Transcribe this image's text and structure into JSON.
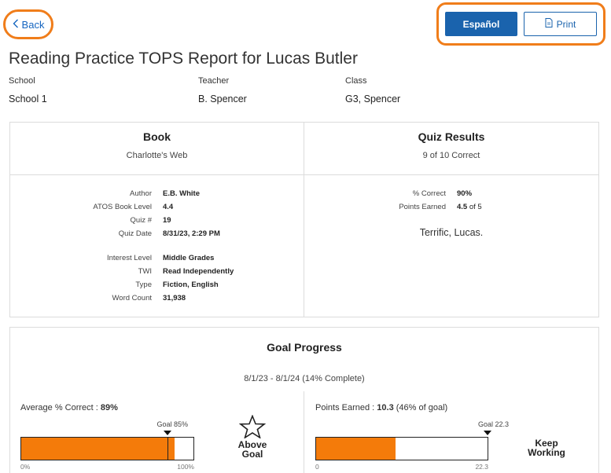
{
  "nav": {
    "back_label": "Back"
  },
  "actions": {
    "espanol_label": "Español",
    "print_label": "Print"
  },
  "report": {
    "title": "Reading Practice TOPS Report for Lucas Butler"
  },
  "meta": {
    "school_label": "School",
    "school_value": "School 1",
    "teacher_label": "Teacher",
    "teacher_value": "B. Spencer",
    "class_label": "Class",
    "class_value": "G3, Spencer"
  },
  "book": {
    "heading": "Book",
    "title": "Charlotte's Web",
    "details": [
      {
        "label": "Author",
        "value": "E.B. White"
      },
      {
        "label": "ATOS Book Level",
        "value": "4.4"
      },
      {
        "label": "Quiz #",
        "value": "19"
      },
      {
        "label": "Quiz Date",
        "value": "8/31/23, 2:29 PM"
      }
    ],
    "details2": [
      {
        "label": "Interest Level",
        "value": "Middle Grades"
      },
      {
        "label": "TWI",
        "value": "Read Independently"
      },
      {
        "label": "Type",
        "value": "Fiction, English"
      },
      {
        "label": "Word Count",
        "value": "31,938"
      }
    ]
  },
  "quiz": {
    "heading": "Quiz Results",
    "summary": "9 of 10 Correct",
    "percent_label": "% Correct",
    "percent_value": "90%",
    "points_label": "Points Earned",
    "points_value": "4.5",
    "points_of": "of 5",
    "message": "Terrific, Lucas."
  },
  "goal": {
    "heading": "Goal Progress",
    "range": "8/1/23 - 8/1/24 (14% Complete)",
    "avg": {
      "label_prefix": "Average % Correct : ",
      "label_value": "89%",
      "goal_label": "Goal 85%",
      "value": 89,
      "goal": 85,
      "max": 100,
      "axis_min": "0%",
      "axis_max": "100%",
      "status": [
        "Above",
        "Goal"
      ],
      "status_icon": "star-outline-icon"
    },
    "points": {
      "label_prefix": "Points Earned : ",
      "label_value": "10.3",
      "label_suffix": " (46% of goal)",
      "goal_label": "Goal 22.3",
      "value": 10.3,
      "goal": 22.3,
      "max": 22.3,
      "axis_min": "0",
      "axis_max": "22.3",
      "status": [
        "Keep",
        "Working"
      ]
    }
  },
  "colors": {
    "accent": "#f07d1a",
    "primary": "#1a63ad",
    "bar_fill": "#f47b0a"
  }
}
